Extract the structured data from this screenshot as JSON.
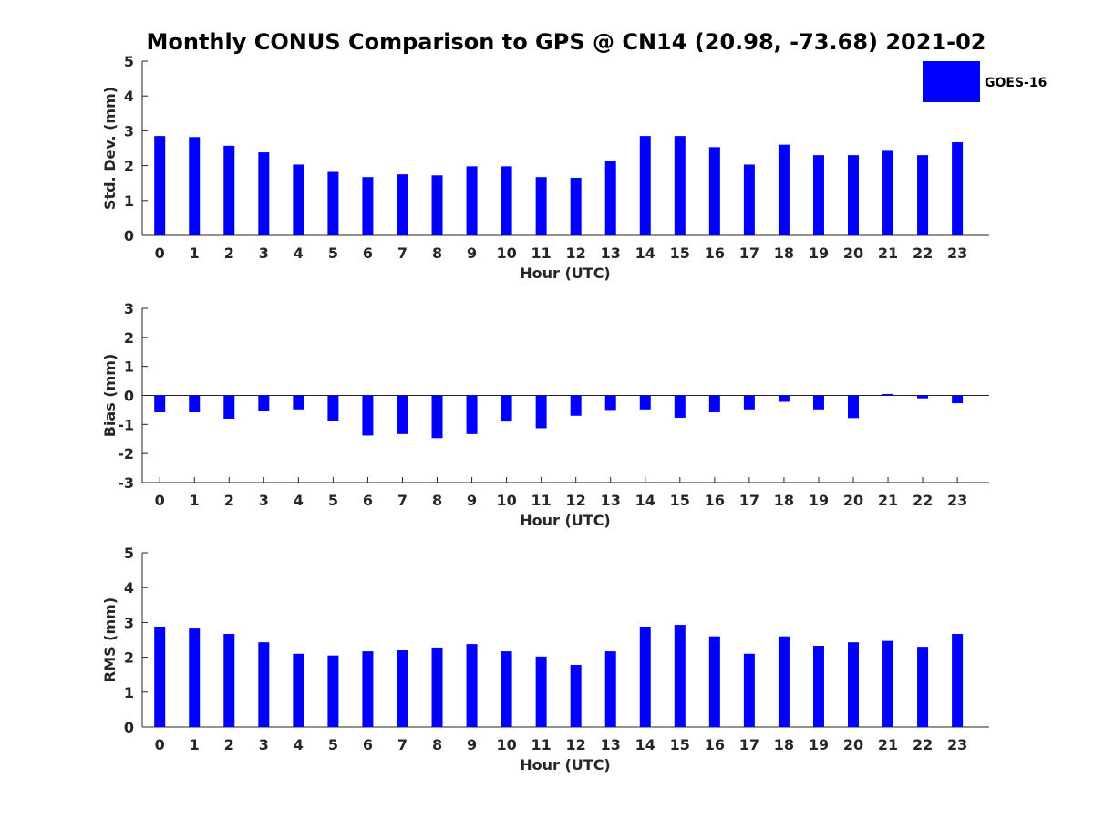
{
  "chart_data": {
    "type": "bar",
    "title": "Monthly CONUS Comparison to GPS @ CN14 (20.98, -73.68) 2021-02",
    "legend": {
      "label": "GOES-16",
      "placement": "top-right"
    },
    "series_color": "#0000ff",
    "axis_color": "#262626",
    "categories": [
      "0",
      "1",
      "2",
      "3",
      "4",
      "5",
      "6",
      "7",
      "8",
      "9",
      "10",
      "11",
      "12",
      "13",
      "14",
      "15",
      "16",
      "17",
      "18",
      "19",
      "20",
      "21",
      "22",
      "23"
    ],
    "panels": [
      {
        "key": "std",
        "ylabel": "Std. Dev. (mm)",
        "xlabel": "Hour (UTC)",
        "ylim": [
          0,
          5
        ],
        "yticks": [
          "0",
          "1",
          "2",
          "3",
          "4",
          "5"
        ],
        "values": [
          2.85,
          2.82,
          2.57,
          2.38,
          2.03,
          1.82,
          1.67,
          1.75,
          1.72,
          1.98,
          1.98,
          1.67,
          1.65,
          2.12,
          2.85,
          2.85,
          2.53,
          2.03,
          2.6,
          2.3,
          2.3,
          2.45,
          2.3,
          2.67
        ]
      },
      {
        "key": "bias",
        "ylabel": "Bias (mm)",
        "xlabel": "Hour (UTC)",
        "ylim": [
          -3,
          3
        ],
        "yticks": [
          "-3",
          "-2",
          "-1",
          "0",
          "1",
          "2",
          "3"
        ],
        "values": [
          -0.58,
          -0.58,
          -0.8,
          -0.55,
          -0.48,
          -0.88,
          -1.38,
          -1.33,
          -1.47,
          -1.33,
          -0.9,
          -1.13,
          -0.7,
          -0.5,
          -0.48,
          -0.77,
          -0.58,
          -0.48,
          -0.22,
          -0.48,
          -0.78,
          0.05,
          -0.1,
          -0.27
        ]
      },
      {
        "key": "rms",
        "ylabel": "RMS (mm)",
        "xlabel": "Hour (UTC)",
        "ylim": [
          0,
          5
        ],
        "yticks": [
          "0",
          "1",
          "2",
          "3",
          "4",
          "5"
        ],
        "values": [
          2.88,
          2.85,
          2.67,
          2.43,
          2.1,
          2.05,
          2.17,
          2.2,
          2.28,
          2.38,
          2.17,
          2.02,
          1.78,
          2.17,
          2.88,
          2.93,
          2.6,
          2.1,
          2.6,
          2.33,
          2.43,
          2.47,
          2.3,
          2.67
        ]
      }
    ]
  }
}
